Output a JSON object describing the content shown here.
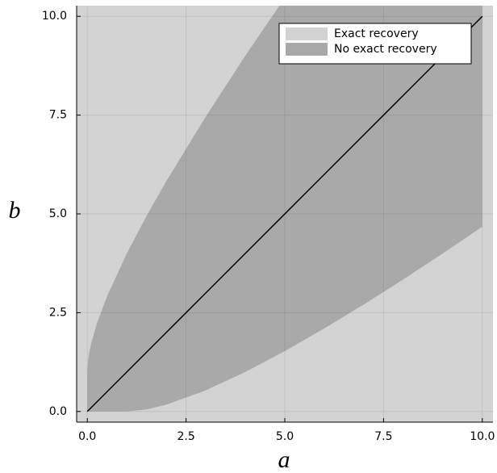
{
  "chart_data": {
    "type": "area",
    "xlabel": "a",
    "ylabel": "b",
    "xlim": [
      -0.27,
      10.27
    ],
    "ylim": [
      -0.27,
      10.27
    ],
    "xticks": [
      {
        "value": 0,
        "label": "0.0"
      },
      2.5,
      {
        "value": 5,
        "label": "5.0"
      },
      7.5,
      {
        "value": 10,
        "label": "10.0"
      }
    ],
    "yticks": [
      {
        "value": 0,
        "label": "0.0"
      },
      2.5,
      {
        "value": 5,
        "label": "5.0"
      },
      7.5,
      {
        "value": 10,
        "label": "10.0"
      }
    ],
    "grid": true,
    "legend": "top-right",
    "background": {
      "name": "Exact recovery",
      "color": "#d3d3d3"
    },
    "series": [
      {
        "name": "No exact recovery",
        "color": "#a9a9a9",
        "x": [
          0,
          0.02,
          0.05,
          0.1,
          0.25,
          0.5,
          1,
          1.5,
          2,
          3,
          4,
          5,
          6,
          7,
          8,
          9,
          10
        ],
        "lower": [
          0,
          0,
          0,
          0,
          0,
          0,
          0,
          0.051,
          0.172,
          0.536,
          1,
          1.528,
          2.101,
          2.708,
          3.343,
          4,
          4.675
        ],
        "upper": [
          1,
          1.303,
          1.497,
          1.732,
          2.25,
          2.914,
          4,
          4.949,
          5.828,
          7.464,
          9,
          10.472,
          11.899,
          13.292,
          14.657,
          16,
          17.325
        ]
      }
    ],
    "line": {
      "color": "#000000",
      "x": [
        0,
        10
      ],
      "y": [
        0,
        10
      ]
    }
  }
}
